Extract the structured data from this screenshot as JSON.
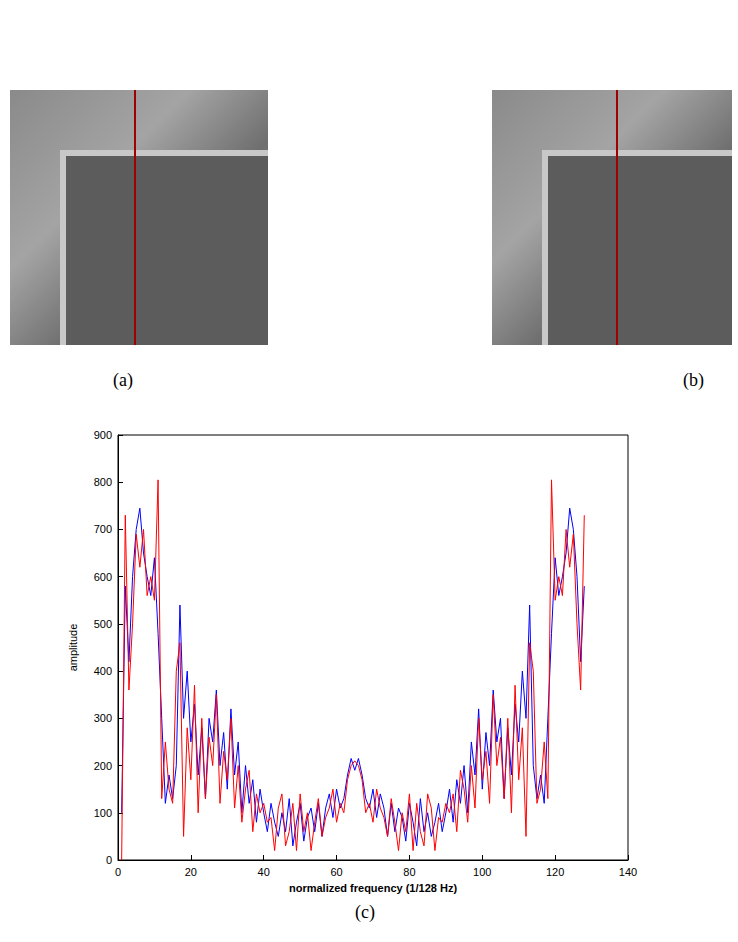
{
  "images": [
    {
      "label": "(a)"
    },
    {
      "label": "(b)"
    }
  ],
  "chart_data": {
    "type": "line",
    "panel_label": "(c)",
    "x_label": "normalized frequency (1/128 Hz)",
    "y_label": "amplitude",
    "x": [
      1,
      2,
      3,
      4,
      5,
      6,
      7,
      8,
      9,
      10,
      11,
      12,
      13,
      14,
      15,
      16,
      17,
      18,
      19,
      20,
      21,
      22,
      23,
      24,
      25,
      26,
      27,
      28,
      29,
      30,
      31,
      32,
      33,
      34,
      35,
      36,
      37,
      38,
      39,
      40,
      41,
      42,
      43,
      44,
      45,
      46,
      47,
      48,
      49,
      50,
      51,
      52,
      53,
      54,
      55,
      56,
      57,
      58,
      59,
      60,
      61,
      62,
      63,
      64,
      65,
      66,
      67,
      68,
      69,
      70,
      71,
      72,
      73,
      74,
      75,
      76,
      77,
      78,
      79,
      80,
      81,
      82,
      83,
      84,
      85,
      86,
      87,
      88,
      89,
      90,
      91,
      92,
      93,
      94,
      95,
      96,
      97,
      98,
      99,
      100,
      101,
      102,
      103,
      104,
      105,
      106,
      107,
      108,
      109,
      110,
      111,
      112,
      113,
      114,
      115,
      116,
      117,
      118,
      119,
      120,
      121,
      122,
      123,
      124,
      125,
      126,
      127,
      128
    ],
    "series": [
      {
        "color": "#0000ff",
        "values": [
          100,
          580,
          420,
          600,
          700,
          745,
          650,
          600,
          560,
          640,
          480,
          300,
          120,
          180,
          130,
          200,
          540,
          300,
          400,
          250,
          330,
          180,
          280,
          130,
          300,
          250,
          360,
          200,
          270,
          150,
          320,
          180,
          250,
          100,
          200,
          120,
          170,
          80,
          150,
          100,
          60,
          120,
          80,
          50,
          100,
          60,
          130,
          30,
          80,
          120,
          40,
          90,
          110,
          60,
          120,
          50,
          110,
          140,
          90,
          150,
          110,
          130,
          180,
          215,
          190,
          215,
          180,
          130,
          110,
          150,
          90,
          140,
          110,
          50,
          120,
          60,
          110,
          90,
          40,
          120,
          80,
          30,
          130,
          60,
          100,
          50,
          80,
          120,
          60,
          100,
          150,
          80,
          170,
          120,
          200,
          100,
          250,
          180,
          320,
          150,
          270,
          200,
          360,
          250,
          300,
          130,
          280,
          180,
          330,
          250,
          400,
          300,
          540,
          200,
          130,
          180,
          120,
          300,
          480,
          640,
          560,
          600,
          650,
          745,
          700,
          600,
          420,
          580
        ]
      },
      {
        "color": "#ff0000",
        "values": [
          0,
          730,
          360,
          500,
          690,
          620,
          700,
          560,
          600,
          550,
          805,
          130,
          250,
          150,
          120,
          400,
          460,
          50,
          280,
          170,
          370,
          100,
          300,
          130,
          260,
          200,
          350,
          120,
          230,
          170,
          300,
          110,
          200,
          80,
          150,
          190,
          60,
          140,
          100,
          120,
          80,
          90,
          20,
          110,
          140,
          30,
          60,
          120,
          20,
          140,
          60,
          100,
          20,
          80,
          130,
          50,
          90,
          110,
          150,
          80,
          120,
          100,
          170,
          200,
          210,
          200,
          170,
          100,
          120,
          80,
          150,
          110,
          90,
          50,
          130,
          80,
          20,
          100,
          60,
          140,
          20,
          120,
          60,
          30,
          140,
          110,
          20,
          90,
          80,
          120,
          100,
          140,
          60,
          190,
          150,
          80,
          200,
          110,
          300,
          170,
          230,
          120,
          350,
          200,
          260,
          130,
          300,
          100,
          370,
          170,
          280,
          50,
          460,
          400,
          120,
          150,
          250,
          130,
          805,
          550,
          600,
          560,
          700,
          620,
          690,
          500,
          360,
          730
        ]
      }
    ],
    "xlim": [
      0,
      140
    ],
    "xticks": [
      0,
      20,
      40,
      60,
      80,
      100,
      120,
      140
    ],
    "ylim": [
      0,
      900
    ],
    "yticks": [
      0,
      100,
      200,
      300,
      400,
      500,
      600,
      700,
      800,
      900
    ],
    "grid": false
  }
}
